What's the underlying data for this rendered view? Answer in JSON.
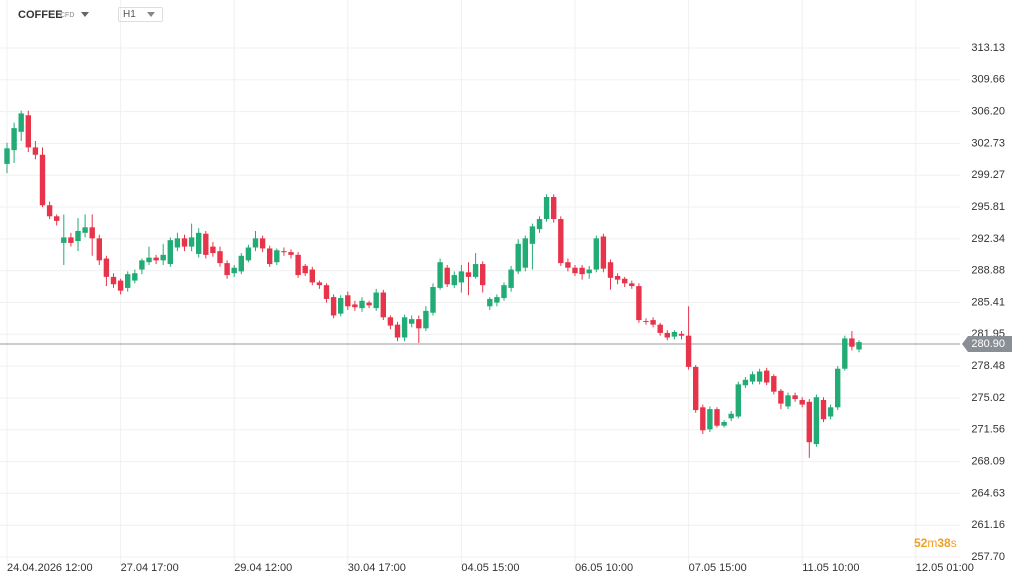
{
  "header": {
    "symbol": "COFFEE",
    "instrument_type": "CFD",
    "timeframe": "H1"
  },
  "chart_data": {
    "type": "candlestick",
    "categories": [
      "24.04.2026 12:00",
      null,
      null,
      null,
      null,
      null,
      null,
      null,
      null,
      null,
      null,
      null,
      null,
      null,
      null,
      null,
      "27.04 17:00",
      null,
      null,
      null,
      null,
      null,
      null,
      null,
      null,
      null,
      null,
      null,
      null,
      null,
      null,
      null,
      "29.04 12:00",
      null,
      null,
      null,
      null,
      null,
      null,
      null,
      null,
      null,
      null,
      null,
      null,
      null,
      null,
      null,
      "30.04 17:00",
      null,
      null,
      null,
      null,
      null,
      null,
      null,
      null,
      null,
      null,
      null,
      null,
      null,
      null,
      null,
      "04.05 15:00",
      null,
      null,
      null,
      null,
      null,
      null,
      null,
      null,
      null,
      null,
      null,
      null,
      null,
      null,
      null,
      "06.05 10:00",
      null,
      null,
      null,
      null,
      null,
      null,
      null,
      null,
      null,
      null,
      null,
      null,
      null,
      null,
      null,
      "07.05 15:00",
      null,
      null,
      null,
      null,
      null,
      null,
      null,
      null,
      null,
      null,
      null,
      null,
      null,
      null,
      null,
      "11.05 10:00",
      null,
      null,
      null,
      null,
      null,
      null,
      null,
      null,
      null,
      null,
      null,
      null,
      null,
      null,
      null,
      "12.05 01:00"
    ],
    "open": [
      300.5,
      302,
      304,
      305.8,
      302.3,
      301.5,
      296,
      294.8,
      291.9,
      292.5,
      292.1,
      293,
      293.6,
      292.4,
      290.2,
      288.2,
      287.8,
      287,
      287.8,
      289,
      289.8,
      290.3,
      290,
      289.6,
      291.4,
      292.4,
      291.5,
      290.7,
      292.9,
      291.5,
      291,
      289.7,
      288.6,
      288.8,
      290,
      291.4,
      292.4,
      291.3,
      289.8,
      291,
      290.9,
      290.6,
      289.4,
      289,
      287.6,
      287.3,
      286,
      284.2,
      286.2,
      285.2,
      284.8,
      285.4,
      284.8,
      286.5,
      283.8,
      283,
      281.6,
      283.1,
      283.6,
      282.6,
      284.3,
      287,
      289.2,
      287.3,
      287.6,
      288.7,
      288.2,
      289.6,
      285,
      285.4,
      285.9,
      287,
      288.8,
      289.2,
      291.8,
      293.4,
      294.5,
      296.9,
      294.5,
      289.8,
      289.2,
      289.2,
      288.6,
      289,
      292.6,
      289.8,
      288.3,
      288,
      287.5,
      287.2,
      283.4,
      283.5,
      283,
      282.1,
      281.7,
      282,
      281.8,
      278.4,
      274,
      271.6,
      273.8,
      272,
      272.8,
      273,
      276.4,
      276.8,
      276.8,
      278,
      277.4,
      275.8,
      274.1,
      275.3,
      274.8,
      274.6,
      270,
      274.8,
      273,
      274,
      278.2,
      281.5,
      280.3,
      null,
      null,
      null,
      null,
      null,
      null,
      null,
      null
    ],
    "high": [
      302.8,
      305,
      306.3,
      306.3,
      303,
      302.3,
      296.4,
      295,
      295,
      293,
      294.6,
      295,
      295,
      292.8,
      290.5,
      288.6,
      288,
      288.8,
      289,
      290.2,
      291.5,
      290.6,
      291.8,
      292.5,
      293,
      292.8,
      294,
      293.5,
      293.2,
      292,
      291.5,
      290,
      289.5,
      290.8,
      291.7,
      293.2,
      292.7,
      291.6,
      291.3,
      291.4,
      291.2,
      290.9,
      289.6,
      289.3,
      287.8,
      287.5,
      286.3,
      286.2,
      286.6,
      285.6,
      286,
      285.6,
      286.9,
      286.8,
      284,
      283.3,
      284.1,
      284,
      284,
      285,
      287.5,
      290.2,
      289.5,
      288.8,
      289.5,
      289.8,
      290.8,
      289.9,
      286,
      286.3,
      287.6,
      289.4,
      292.3,
      292.7,
      294,
      294.8,
      297.2,
      297.2,
      294.8,
      290.2,
      289.5,
      289.5,
      289.4,
      292.7,
      292.9,
      290.1,
      288.6,
      288.2,
      287.8,
      287.5,
      283.7,
      283.8,
      283.2,
      282.4,
      282.4,
      282.3,
      285,
      278.6,
      274.3,
      274.1,
      274,
      272.6,
      273.6,
      276.8,
      277.3,
      277.9,
      278.2,
      278.3,
      277.6,
      276,
      275.6,
      275.6,
      275.1,
      274.9,
      275.4,
      275.1,
      274.3,
      278.5,
      281.8,
      282.3,
      281.3,
      null,
      null,
      null,
      null,
      null,
      null,
      null,
      null
    ],
    "low": [
      299.5,
      300.6,
      303,
      301.8,
      301,
      295.8,
      294.5,
      293.8,
      289.5,
      291.5,
      291,
      292.5,
      290.5,
      289.5,
      287.2,
      287,
      286.3,
      286.6,
      287.5,
      288.5,
      289.5,
      289.6,
      289.5,
      289.3,
      291,
      291,
      291,
      290.3,
      290.2,
      290.4,
      289.3,
      288,
      288.2,
      288.5,
      289.8,
      291,
      290.9,
      289.3,
      289.5,
      290.5,
      290.2,
      288.1,
      288.3,
      287.3,
      286.9,
      285.4,
      283.7,
      283.9,
      284.6,
      284.5,
      284.4,
      284.8,
      284.5,
      283.5,
      282.5,
      281.2,
      281.2,
      282.7,
      281,
      282.3,
      284,
      286.8,
      287.1,
      287,
      286.5,
      286.2,
      288,
      286.5,
      284.6,
      285,
      285.6,
      286.6,
      288.5,
      288.8,
      289,
      293,
      294.2,
      294.1,
      289.4,
      288.8,
      288.3,
      287.9,
      288,
      288.7,
      288.7,
      286.8,
      287.4,
      287.1,
      286.9,
      283.2,
      283,
      282.7,
      281.8,
      281.3,
      281.4,
      281.4,
      278.1,
      273.4,
      271.1,
      271.3,
      271.8,
      271.8,
      272.5,
      272.8,
      276.1,
      276.5,
      276.5,
      276.4,
      275.4,
      273.8,
      273.8,
      274.6,
      274,
      268.5,
      269.7,
      272.4,
      272.7,
      273.7,
      278,
      280.2,
      280,
      null,
      null,
      null,
      null,
      null,
      null,
      null,
      null
    ],
    "close": [
      302.2,
      304.4,
      306,
      302.3,
      301.5,
      296,
      294.8,
      294.3,
      292.5,
      291.9,
      293.2,
      293.6,
      292.4,
      290,
      288.2,
      287.4,
      286.7,
      288.5,
      288.6,
      290,
      290.3,
      290,
      290.6,
      292.2,
      292.4,
      291.5,
      292.5,
      293,
      290.6,
      290.8,
      289.7,
      288.4,
      289.2,
      290.5,
      291.4,
      292.4,
      291.3,
      289.6,
      291.1,
      290.9,
      290.6,
      288.4,
      288.6,
      287.6,
      287.3,
      285.8,
      284,
      285.9,
      285,
      284.9,
      285.6,
      285.1,
      286.5,
      283.8,
      282.9,
      281.6,
      283.8,
      283.6,
      282.6,
      284.5,
      287.1,
      289.8,
      287.4,
      288.4,
      288.8,
      288.2,
      289.6,
      287.3,
      285.8,
      286,
      287.3,
      289,
      291.8,
      292.4,
      293.7,
      294.5,
      296.9,
      294.5,
      289.7,
      289.2,
      288.6,
      288.5,
      289,
      292.4,
      289.1,
      288.1,
      287.9,
      287.5,
      287.2,
      283.5,
      283.3,
      283,
      282.1,
      281.6,
      282.2,
      281.8,
      278.4,
      273.7,
      271.5,
      273.8,
      272,
      272.4,
      273.3,
      276.5,
      277,
      277.6,
      277.9,
      276.7,
      275.7,
      274.4,
      275.3,
      274.9,
      274.3,
      270.2,
      275.1,
      272.7,
      274,
      278.2,
      281.5,
      280.6,
      281.1,
      null,
      null,
      null,
      null,
      null,
      null,
      null,
      null
    ],
    "up_color": "#22ab75",
    "down_color": "#e8344a",
    "ylim": [
      256.83,
      318.35
    ],
    "yticks": [
      {
        "value": 257.7,
        "label": "257.70"
      },
      261.16,
      264.63,
      268.09,
      271.56,
      275.02,
      278.48,
      281.95,
      285.41,
      288.88,
      292.34,
      295.81,
      299.27,
      302.73,
      {
        "value": 306.2,
        "label": "306.20"
      },
      309.66,
      313.13
    ],
    "last_price": {
      "value": 280.9,
      "label": "280.90"
    },
    "countdown": {
      "minutes": "52",
      "minutes_unit": "m",
      "seconds": "38",
      "seconds_unit": "s"
    },
    "grid": true
  }
}
